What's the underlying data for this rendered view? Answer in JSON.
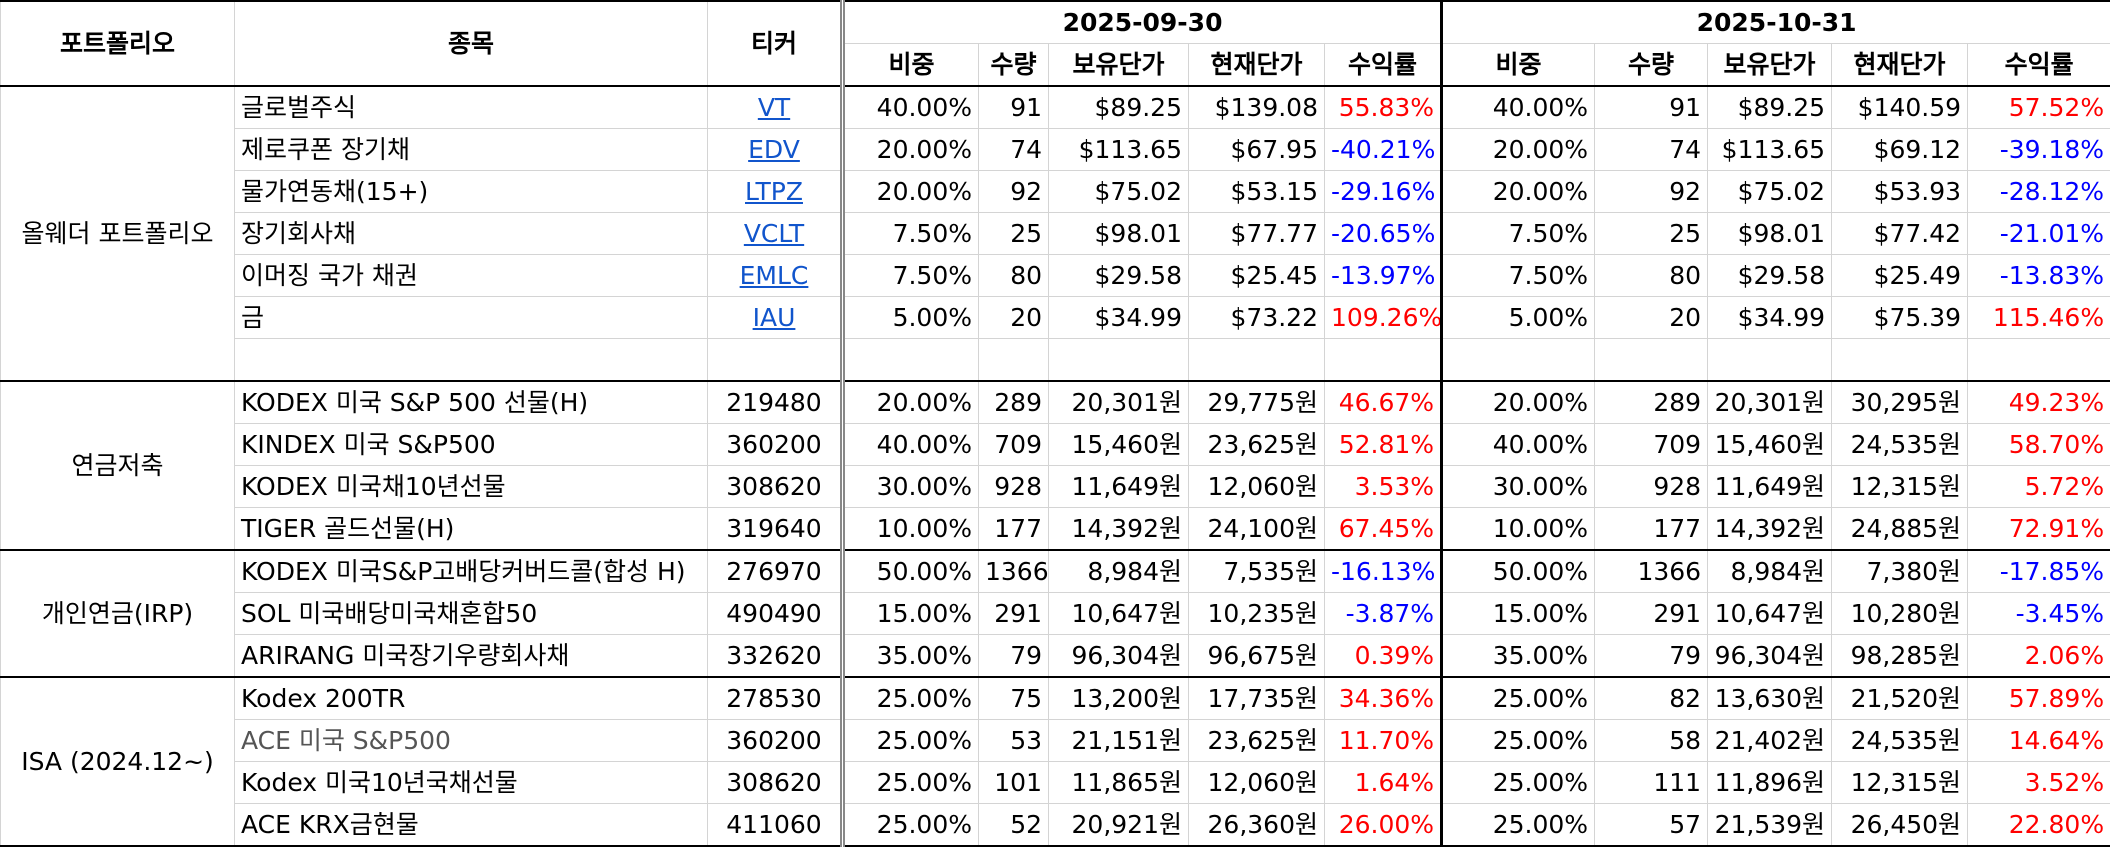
{
  "headers": {
    "portfolio": "포트폴리오",
    "item": "종목",
    "ticker": "티커",
    "date1": "2025-09-30",
    "date2": "2025-10-31",
    "sub": [
      "비중",
      "수량",
      "보유단가",
      "현재단가",
      "수익률"
    ]
  },
  "groups": [
    {
      "name": "올웨더 포트폴리오",
      "rows": [
        {
          "item": "글로벌주식",
          "ticker": "VT",
          "link": true,
          "p1": [
            "40.00%",
            "91",
            "$89.25",
            "$139.08",
            "55.83%"
          ],
          "p2": [
            "40.00%",
            "91",
            "$89.25",
            "$140.59",
            "57.52%"
          ]
        },
        {
          "item": "제로쿠폰 장기채",
          "ticker": "EDV",
          "link": true,
          "p1": [
            "20.00%",
            "74",
            "$113.65",
            "$67.95",
            "-40.21%"
          ],
          "p2": [
            "20.00%",
            "74",
            "$113.65",
            "$69.12",
            "-39.18%"
          ]
        },
        {
          "item": "물가연동채(15+)",
          "ticker": "LTPZ",
          "link": true,
          "p1": [
            "20.00%",
            "92",
            "$75.02",
            "$53.15",
            "-29.16%"
          ],
          "p2": [
            "20.00%",
            "92",
            "$75.02",
            "$53.93",
            "-28.12%"
          ]
        },
        {
          "item": "장기회사채",
          "ticker": "VCLT",
          "link": true,
          "p1": [
            "7.50%",
            "25",
            "$98.01",
            "$77.77",
            "-20.65%"
          ],
          "p2": [
            "7.50%",
            "25",
            "$98.01",
            "$77.42",
            "-21.01%"
          ]
        },
        {
          "item": "이머징 국가 채권",
          "ticker": "EMLC",
          "link": true,
          "p1": [
            "7.50%",
            "80",
            "$29.58",
            "$25.45",
            "-13.97%"
          ],
          "p2": [
            "7.50%",
            "80",
            "$29.58",
            "$25.49",
            "-13.83%"
          ]
        },
        {
          "item": "금",
          "ticker": "IAU",
          "link": true,
          "p1": [
            "5.00%",
            "20",
            "$34.99",
            "$73.22",
            "109.26%"
          ],
          "p2": [
            "5.00%",
            "20",
            "$34.99",
            "$75.39",
            "115.46%"
          ]
        },
        {
          "item": "",
          "ticker": "",
          "link": false,
          "p1": [
            "",
            "",
            "",
            "",
            ""
          ],
          "p2": [
            "",
            "",
            "",
            "",
            ""
          ]
        }
      ]
    },
    {
      "name": "연금저축",
      "rows": [
        {
          "item": "KODEX 미국 S&P 500 선물(H)",
          "ticker": "219480",
          "link": false,
          "p1": [
            "20.00%",
            "289",
            "20,301원",
            "29,775원",
            "46.67%"
          ],
          "p2": [
            "20.00%",
            "289",
            "20,301원",
            "30,295원",
            "49.23%"
          ]
        },
        {
          "item": "KINDEX 미국 S&P500",
          "ticker": "360200",
          "link": false,
          "p1": [
            "40.00%",
            "709",
            "15,460원",
            "23,625원",
            "52.81%"
          ],
          "p2": [
            "40.00%",
            "709",
            "15,460원",
            "24,535원",
            "58.70%"
          ]
        },
        {
          "item": "KODEX 미국채10년선물",
          "ticker": "308620",
          "link": false,
          "p1": [
            "30.00%",
            "928",
            "11,649원",
            "12,060원",
            "3.53%"
          ],
          "p2": [
            "30.00%",
            "928",
            "11,649원",
            "12,315원",
            "5.72%"
          ]
        },
        {
          "item": "TIGER 골드선물(H)",
          "ticker": "319640",
          "link": false,
          "p1": [
            "10.00%",
            "177",
            "14,392원",
            "24,100원",
            "67.45%"
          ],
          "p2": [
            "10.00%",
            "177",
            "14,392원",
            "24,885원",
            "72.91%"
          ]
        }
      ]
    },
    {
      "name": "개인연금(IRP)",
      "rows": [
        {
          "item": "KODEX 미국S&P고배당커버드콜(합성 H)",
          "ticker": "276970",
          "link": false,
          "p1": [
            "50.00%",
            "1366",
            "8,984원",
            "7,535원",
            "-16.13%"
          ],
          "p2": [
            "50.00%",
            "1366",
            "8,984원",
            "7,380원",
            "-17.85%"
          ]
        },
        {
          "item": "SOL 미국배당미국채혼합50",
          "ticker": "490490",
          "link": false,
          "p1": [
            "15.00%",
            "291",
            "10,647원",
            "10,235원",
            "-3.87%"
          ],
          "p2": [
            "15.00%",
            "291",
            "10,647원",
            "10,280원",
            "-3.45%"
          ]
        },
        {
          "item": "ARIRANG 미국장기우량회사채",
          "ticker": "332620",
          "link": false,
          "p1": [
            "35.00%",
            "79",
            "96,304원",
            "96,675원",
            "0.39%"
          ],
          "p2": [
            "35.00%",
            "79",
            "96,304원",
            "98,285원",
            "2.06%"
          ]
        }
      ]
    },
    {
      "name": "ISA\n(2024.12~)",
      "rows": [
        {
          "item": "Kodex 200TR",
          "ticker": "278530",
          "link": false,
          "p1": [
            "25.00%",
            "75",
            "13,200원",
            "17,735원",
            "34.36%"
          ],
          "p2": [
            "25.00%",
            "82",
            "13,630원",
            "21,520원",
            "57.89%"
          ]
        },
        {
          "item": "ACE 미국 S&P500",
          "ticker": "360200",
          "link": false,
          "gray": true,
          "p1": [
            "25.00%",
            "53",
            "21,151원",
            "23,625원",
            "11.70%"
          ],
          "p2": [
            "25.00%",
            "58",
            "21,402원",
            "24,535원",
            "14.64%"
          ]
        },
        {
          "item": "Kodex 미국10년국채선물",
          "ticker": "308620",
          "link": false,
          "p1": [
            "25.00%",
            "101",
            "11,865원",
            "12,060원",
            "1.64%"
          ],
          "p2": [
            "25.00%",
            "111",
            "11,896원",
            "12,315원",
            "3.52%"
          ]
        },
        {
          "item": "ACE KRX금현물",
          "ticker": "411060",
          "link": false,
          "p1": [
            "25.00%",
            "52",
            "20,921원",
            "26,360원",
            "26.00%"
          ],
          "p2": [
            "25.00%",
            "57",
            "21,539원",
            "26,450원",
            "22.80%"
          ]
        }
      ]
    }
  ]
}
